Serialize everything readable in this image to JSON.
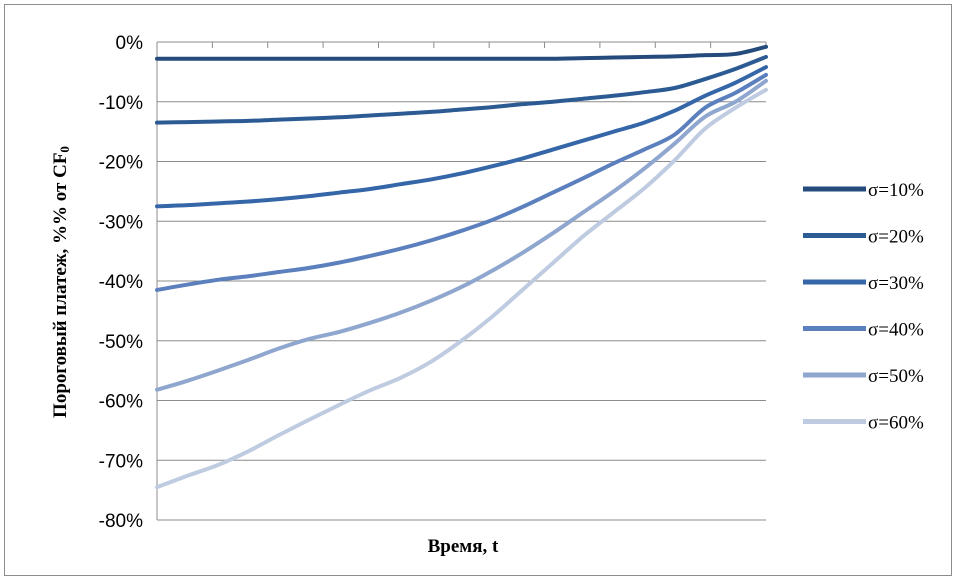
{
  "chart_data": {
    "type": "line",
    "title": "",
    "xlabel": "Время, t",
    "ylabel": "Пороговый платеж, %% от CF",
    "ylabel_subscript": "0",
    "ylim": [
      -80,
      0
    ],
    "yticks": [
      0,
      -10,
      -20,
      -30,
      -40,
      -50,
      -60,
      -70,
      -80
    ],
    "ytick_labels": [
      "0%",
      "-10%",
      "-20%",
      "-30%",
      "-40%",
      "-50%",
      "-60%",
      "-70%",
      "-80%"
    ],
    "x": [
      0,
      0.05,
      0.1,
      0.15,
      0.2,
      0.25,
      0.3,
      0.35,
      0.4,
      0.45,
      0.5,
      0.55,
      0.6,
      0.65,
      0.7,
      0.75,
      0.8,
      0.85,
      0.9,
      0.95,
      1.0
    ],
    "xlim": [
      0,
      1
    ],
    "x_minor_tick_count": 11,
    "grid": "horizontal",
    "legend_position": "right",
    "series": [
      {
        "name": "σ=10%",
        "color": "#254a7c",
        "values": [
          -2.8,
          -2.8,
          -2.8,
          -2.8,
          -2.8,
          -2.8,
          -2.8,
          -2.8,
          -2.8,
          -2.8,
          -2.8,
          -2.8,
          -2.8,
          -2.8,
          -2.7,
          -2.6,
          -2.5,
          -2.4,
          -2.2,
          -2.0,
          -0.8
        ]
      },
      {
        "name": "σ=20%",
        "color": "#2c5a93",
        "values": [
          -13.5,
          -13.4,
          -13.3,
          -13.2,
          -13.0,
          -12.8,
          -12.6,
          -12.3,
          -12.0,
          -11.7,
          -11.3,
          -10.9,
          -10.4,
          -10.0,
          -9.5,
          -9.0,
          -8.4,
          -7.7,
          -6.2,
          -4.5,
          -2.5
        ]
      },
      {
        "name": "σ=30%",
        "color": "#3566a8",
        "values": [
          -27.5,
          -27.3,
          -27.0,
          -26.7,
          -26.3,
          -25.8,
          -25.2,
          -24.6,
          -23.8,
          -23.0,
          -22.0,
          -20.8,
          -19.5,
          -18.0,
          -16.5,
          -15.0,
          -13.5,
          -11.5,
          -9.0,
          -6.8,
          -4.2
        ]
      },
      {
        "name": "σ=40%",
        "color": "#5b80bd",
        "values": [
          -41.5,
          -40.6,
          -39.8,
          -39.2,
          -38.5,
          -37.8,
          -36.9,
          -35.8,
          -34.6,
          -33.2,
          -31.6,
          -29.8,
          -27.6,
          -25.2,
          -22.8,
          -20.3,
          -18.0,
          -15.5,
          -11.0,
          -8.5,
          -5.5
        ]
      },
      {
        "name": "σ=50%",
        "color": "#8fa6ce",
        "values": [
          -58.2,
          -56.7,
          -55.0,
          -53.2,
          -51.3,
          -49.7,
          -48.5,
          -47.0,
          -45.3,
          -43.3,
          -41.0,
          -38.3,
          -35.3,
          -32.0,
          -28.5,
          -25.0,
          -21.2,
          -17.0,
          -12.5,
          -10.0,
          -6.5
        ]
      },
      {
        "name": "σ=60%",
        "color": "#bfcbe0",
        "values": [
          -74.5,
          -72.6,
          -70.8,
          -68.5,
          -65.8,
          -63.2,
          -60.7,
          -58.3,
          -56.2,
          -53.5,
          -50.0,
          -46.0,
          -41.5,
          -37.0,
          -32.5,
          -28.5,
          -24.5,
          -19.8,
          -14.5,
          -11.0,
          -8.0
        ]
      }
    ]
  }
}
